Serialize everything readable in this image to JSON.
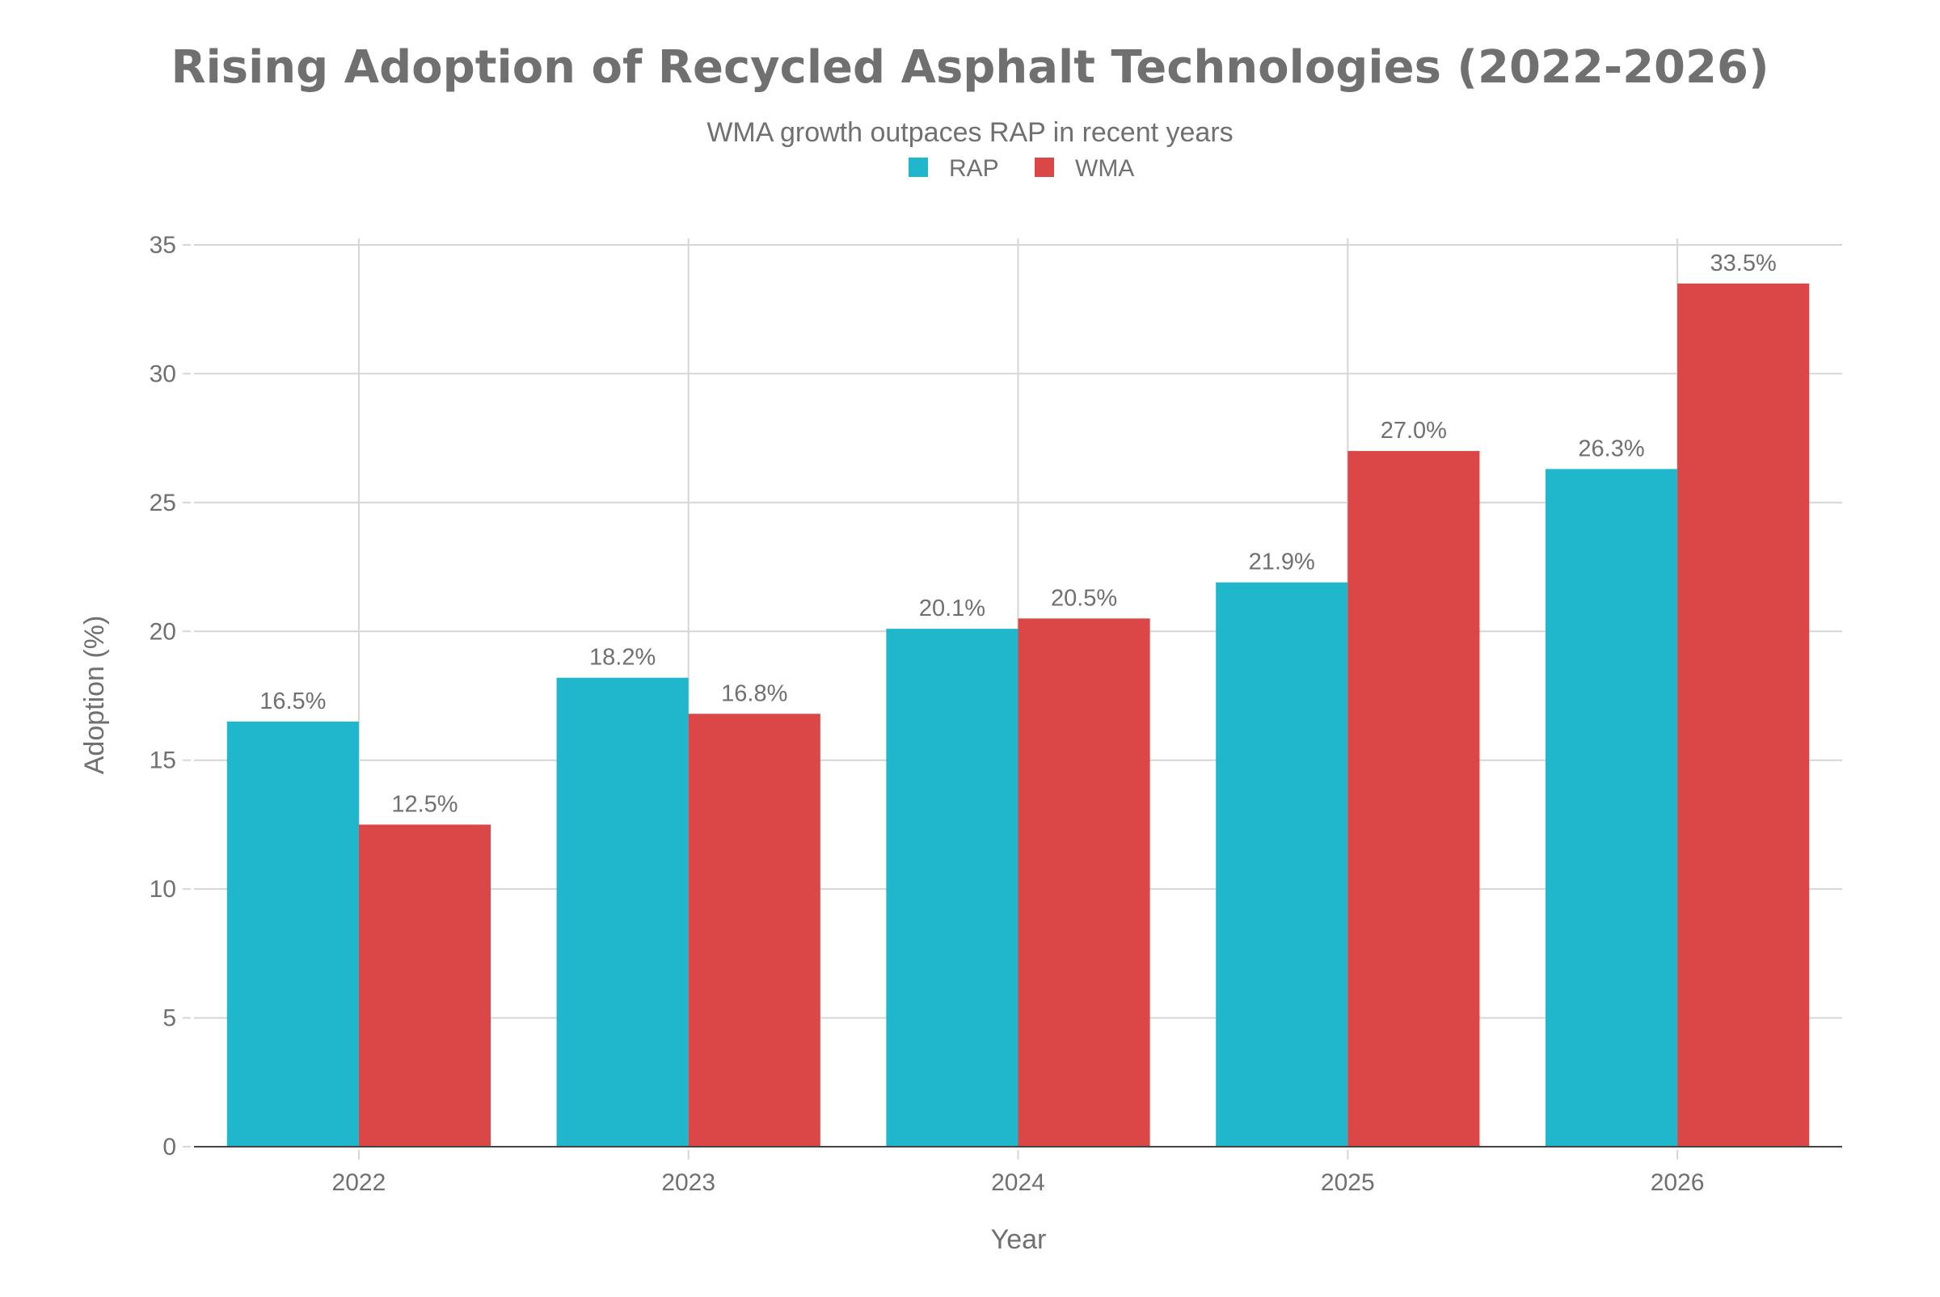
{
  "chart_data": {
    "type": "bar",
    "title": "Rising Adoption of Recycled Asphalt Technologies (2022-2026)",
    "subtitle": "WMA growth outpaces RAP in recent years",
    "xlabel": "Year",
    "ylabel": "Adoption (%)",
    "categories": [
      "2022",
      "2023",
      "2024",
      "2025",
      "2026"
    ],
    "series": [
      {
        "name": "RAP",
        "color": "#20b6cc",
        "values": [
          16.5,
          18.2,
          20.1,
          21.9,
          26.3
        ],
        "labels": [
          "16.5%",
          "18.2%",
          "20.1%",
          "21.9%",
          "26.3%"
        ]
      },
      {
        "name": "WMA",
        "color": "#db4647",
        "values": [
          12.5,
          16.8,
          20.5,
          27.0,
          33.5
        ],
        "labels": [
          "12.5%",
          "16.8%",
          "20.5%",
          "27.0%",
          "33.5%"
        ]
      }
    ],
    "ylim": [
      0,
      35
    ],
    "yticks": [
      "0",
      "5",
      "10",
      "15",
      "20",
      "25",
      "30",
      "35"
    ],
    "grid": true,
    "legend": "top-center"
  }
}
